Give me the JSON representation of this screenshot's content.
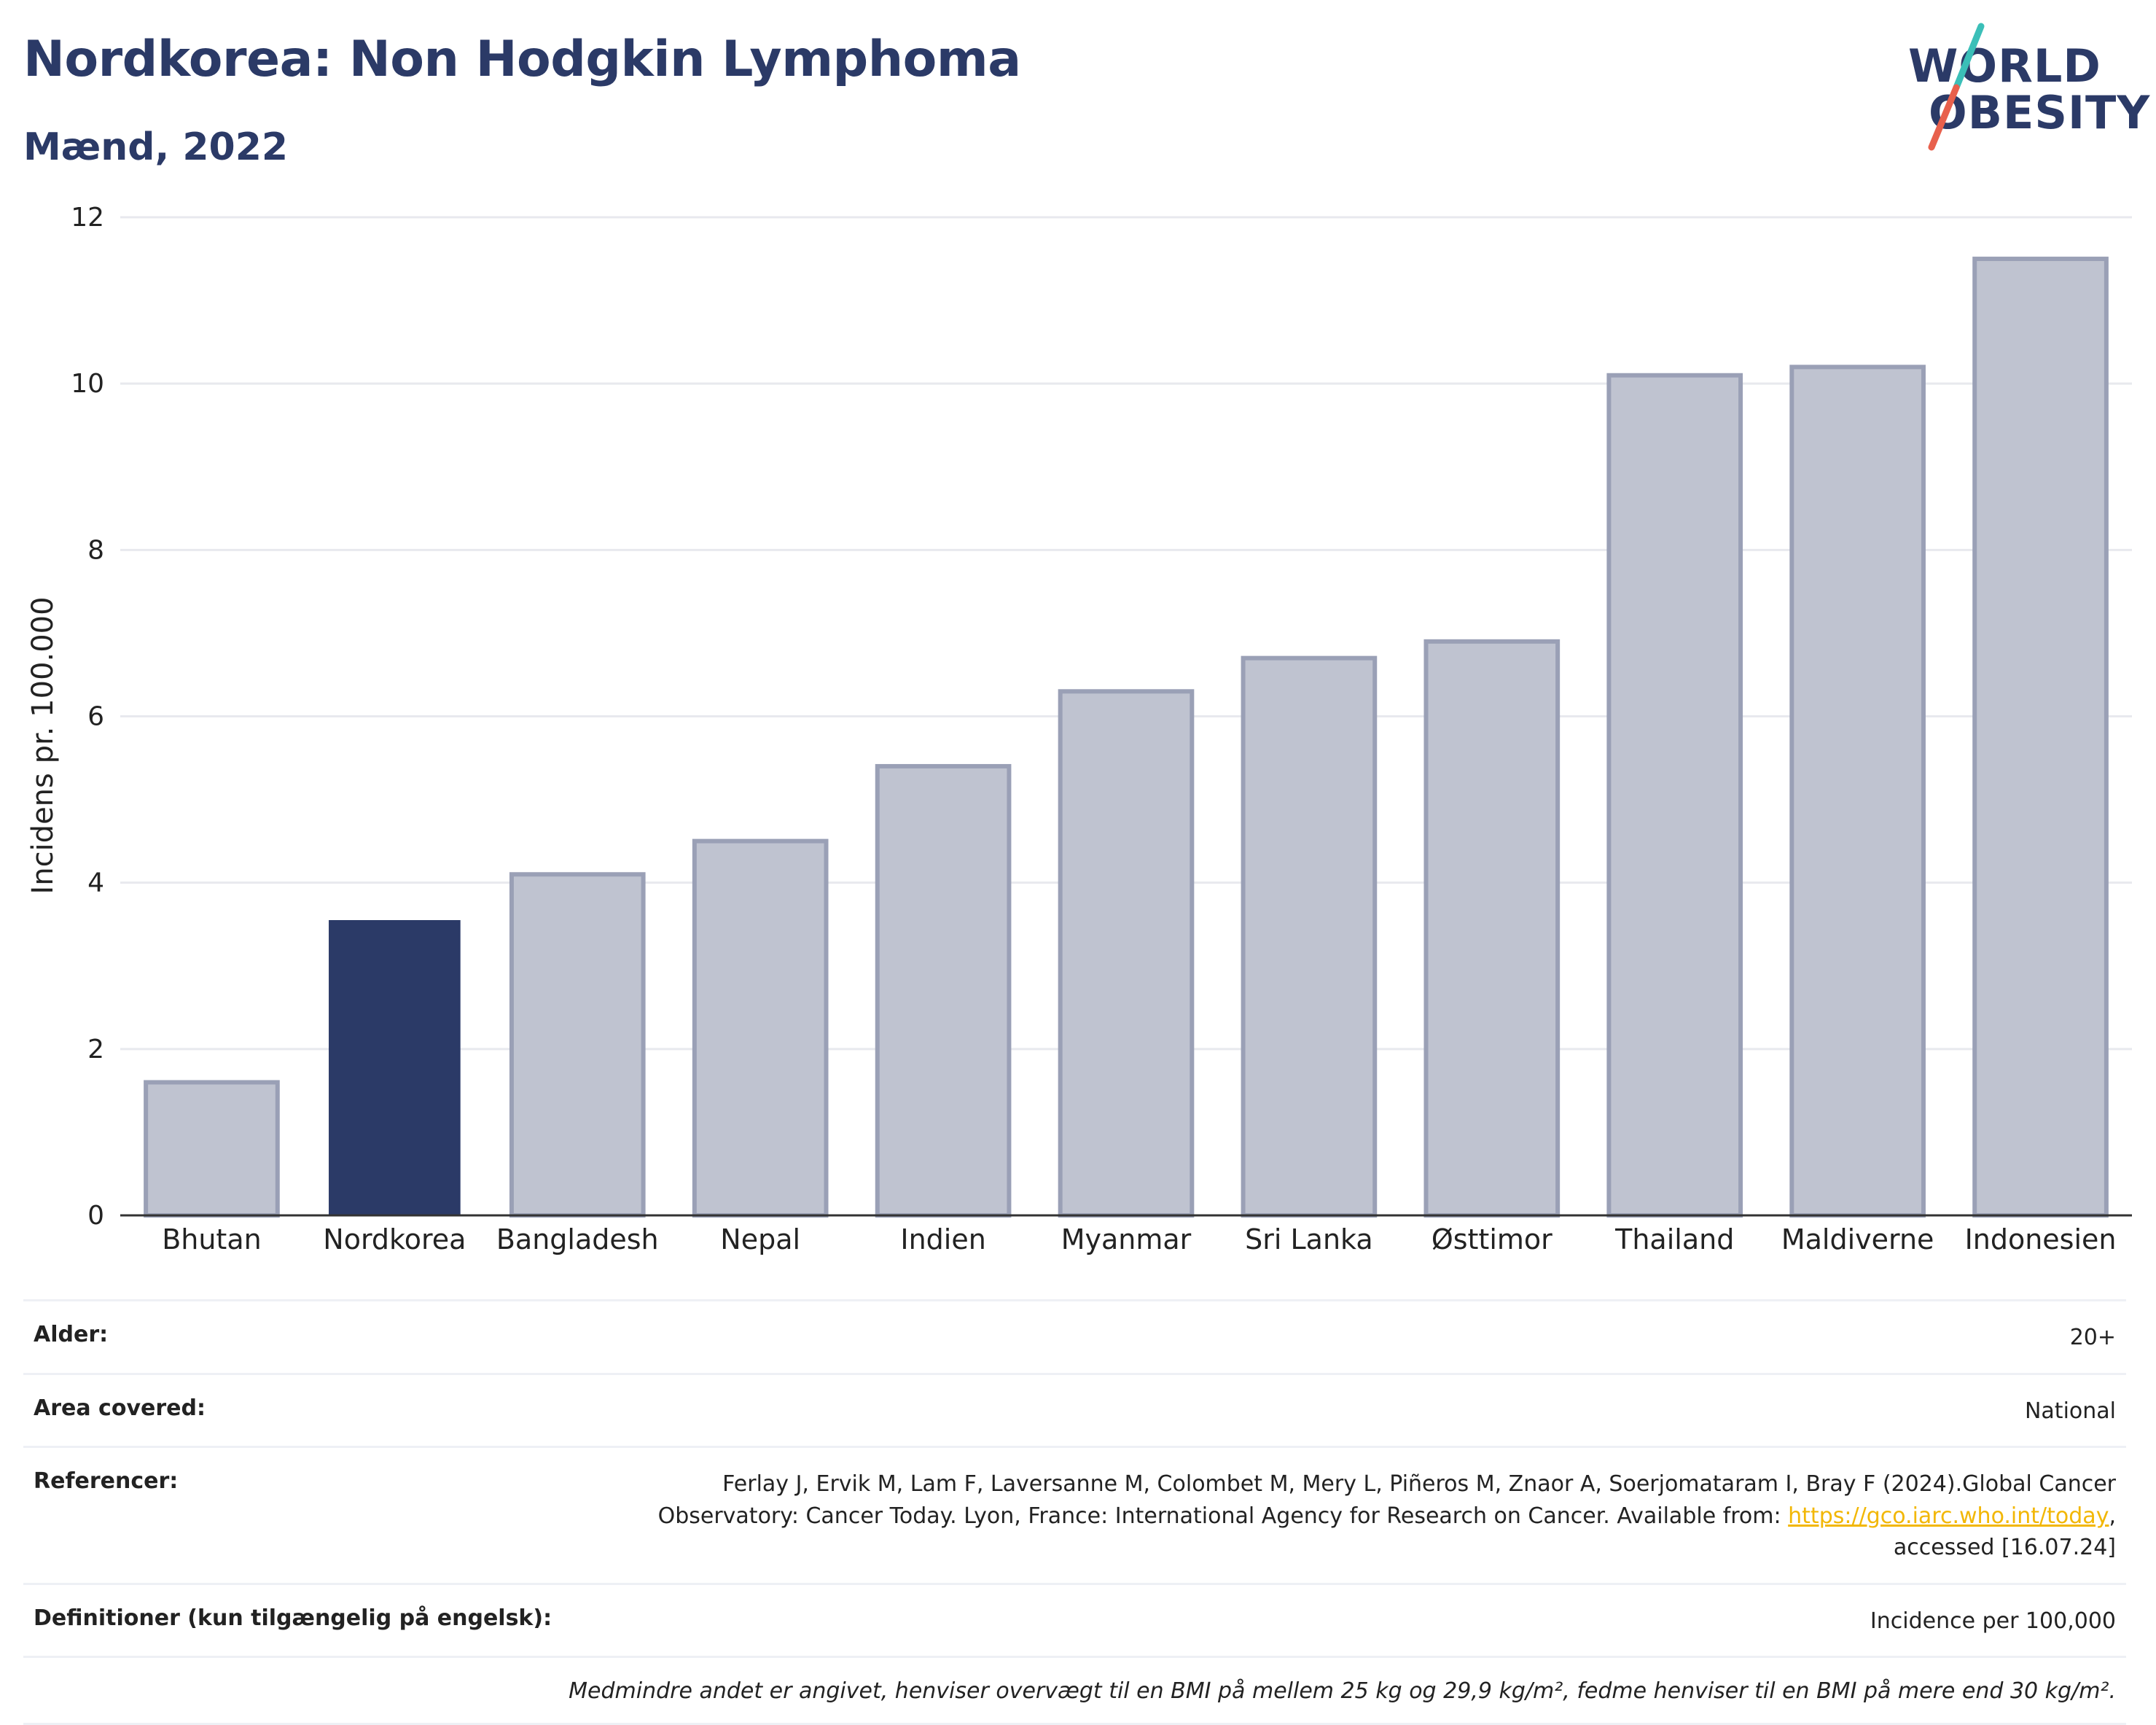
{
  "header": {
    "title": "Nordkorea: Non Hodgkin Lymphoma",
    "subtitle": "Mænd, 2022"
  },
  "logo": {
    "line1": "WORLD",
    "line2": "OBESITY",
    "colors": [
      "#3bbfb8",
      "#e8604c",
      "#2b3a67"
    ]
  },
  "chart_data": {
    "type": "bar",
    "categories": [
      "Bhutan",
      "Nordkorea",
      "Bangladesh",
      "Nepal",
      "Indien",
      "Myanmar",
      "Sri Lanka",
      "Østtimor",
      "Thailand",
      "Maldiverne",
      "Indonesien"
    ],
    "values": [
      1.6,
      3.55,
      4.1,
      4.5,
      5.4,
      6.3,
      6.7,
      6.9,
      10.1,
      10.2,
      11.5
    ],
    "highlight": "Nordkorea",
    "ylabel": "Incidens pr. 100.000",
    "ylim": [
      0,
      12
    ],
    "yticks": [
      "0",
      "2",
      "4",
      "6",
      "8",
      "10",
      "12"
    ],
    "grid": true,
    "colors": {
      "highlight": "#2b3a67",
      "default": "#bfc3d0",
      "default_border": "#9aa0b6"
    }
  },
  "meta": {
    "age_label": "Alder:",
    "age_value": "20+",
    "area_label": "Area covered:",
    "area_value": "National",
    "ref_label": "Referencer:",
    "ref_line1": "Ferlay J, Ervik M, Lam F, Laversanne M, Colombet M, Mery L, Piñeros M, Znaor A, Soerjomataram I, Bray F (2024).Global Cancer",
    "ref_line2_pre": "Observatory: Cancer Today. Lyon, France: International Agency for Research on Cancer. Available from: ",
    "ref_link": "https://gco.iarc.who.int/today",
    "ref_line2_post": ",",
    "ref_line3": "accessed [16.07.24]",
    "def_label": "Definitioner (kun tilgængelig på engelsk):",
    "def_value": "Incidence per 100,000",
    "note": "Medmindre andet er angivet, henviser overvægt til en BMI på mellem 25 kg og 29,9 kg/m², fedme henviser til en BMI på mere end 30 kg/m²."
  }
}
